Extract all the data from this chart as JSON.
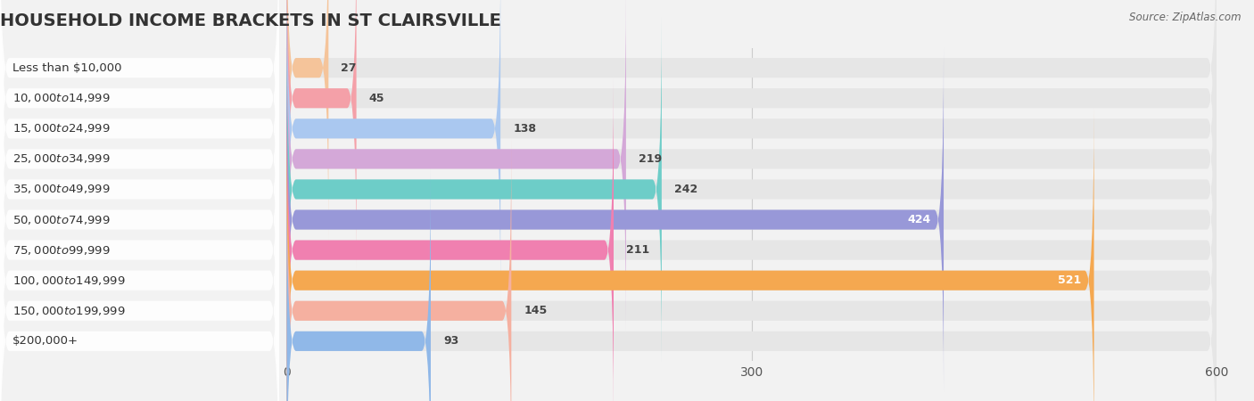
{
  "title": "HOUSEHOLD INCOME BRACKETS IN ST CLAIRSVILLE",
  "source": "Source: ZipAtlas.com",
  "categories": [
    "Less than $10,000",
    "$10,000 to $14,999",
    "$15,000 to $24,999",
    "$25,000 to $34,999",
    "$35,000 to $49,999",
    "$50,000 to $74,999",
    "$75,000 to $99,999",
    "$100,000 to $149,999",
    "$150,000 to $199,999",
    "$200,000+"
  ],
  "values": [
    27,
    45,
    138,
    219,
    242,
    424,
    211,
    521,
    145,
    93
  ],
  "bar_colors": [
    "#f5c49a",
    "#f4a0a8",
    "#aac8f0",
    "#d4a8d8",
    "#6dcdc8",
    "#9898d8",
    "#f080b0",
    "#f5a850",
    "#f5b0a0",
    "#90b8e8"
  ],
  "xlim_data": [
    -185,
    600
  ],
  "data_zero": 0,
  "data_max": 600,
  "xticks_data": [
    0,
    300,
    600
  ],
  "xtick_labels": [
    "0",
    "300",
    "600"
  ],
  "background_color": "#f2f2f2",
  "row_bg_color": "#e6e6e6",
  "title_fontsize": 14,
  "label_fontsize": 9.5,
  "value_fontsize": 9,
  "bar_height": 0.65
}
